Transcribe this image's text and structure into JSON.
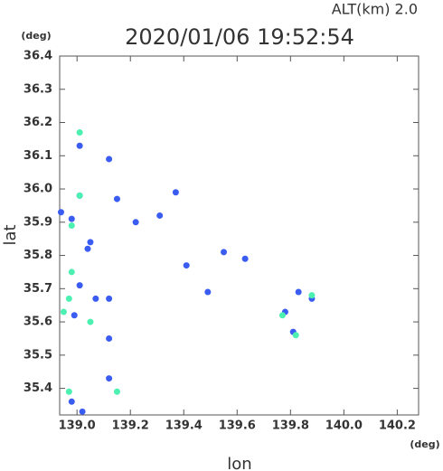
{
  "chart_data": {
    "type": "scatter",
    "title": "2020/01/06 19:52:54",
    "subtitle": "ALT(km)  2.0",
    "x_label": "lon",
    "y_label": "lat",
    "x_unit": "(deg)",
    "y_unit": "(deg)",
    "xlim": [
      138.935,
      140.28
    ],
    "ylim": [
      35.32,
      36.4
    ],
    "xticks": [
      {
        "value": 139,
        "label": "139.0"
      },
      139.2,
      139.4,
      139.6,
      139.8,
      {
        "value": 140,
        "label": "140.0"
      },
      140.2
    ],
    "yticks": [
      36.4,
      36.3,
      36.2,
      36.1,
      {
        "value": 36,
        "label": "36.0"
      },
      35.9,
      35.8,
      35.7,
      35.6,
      35.5,
      35.4
    ],
    "series": [
      {
        "color": "#3a5cf0",
        "x": [
          139.01,
          139.01,
          138.98,
          138.94,
          139.01,
          138.99,
          139.12,
          139.04,
          139.12,
          139.12,
          138.98,
          139.02,
          139.15,
          139.12,
          139.22,
          139.31,
          139.37,
          139.41,
          139.49,
          139.63,
          139.83,
          139.78,
          139.81,
          139.88,
          139.55,
          139.05,
          139.07
        ],
        "values": [
          36.13,
          35.98,
          35.91,
          35.93,
          35.71,
          35.62,
          35.67,
          35.82,
          35.55,
          35.43,
          35.36,
          35.33,
          35.97,
          36.09,
          35.9,
          35.92,
          35.99,
          35.77,
          35.69,
          35.79,
          35.69,
          35.63,
          35.57,
          35.67,
          35.81,
          35.84,
          35.67
        ]
      },
      {
        "color": "#4cf0b0",
        "x": [
          139.01,
          138.98,
          138.98,
          138.97,
          139.05,
          138.97,
          139.15,
          139.01,
          138.95,
          139.88,
          139.82,
          139.77
        ],
        "values": [
          36.17,
          35.89,
          35.75,
          35.67,
          35.6,
          35.39,
          35.39,
          35.98,
          35.63,
          35.68,
          35.56,
          35.62
        ]
      }
    ]
  }
}
